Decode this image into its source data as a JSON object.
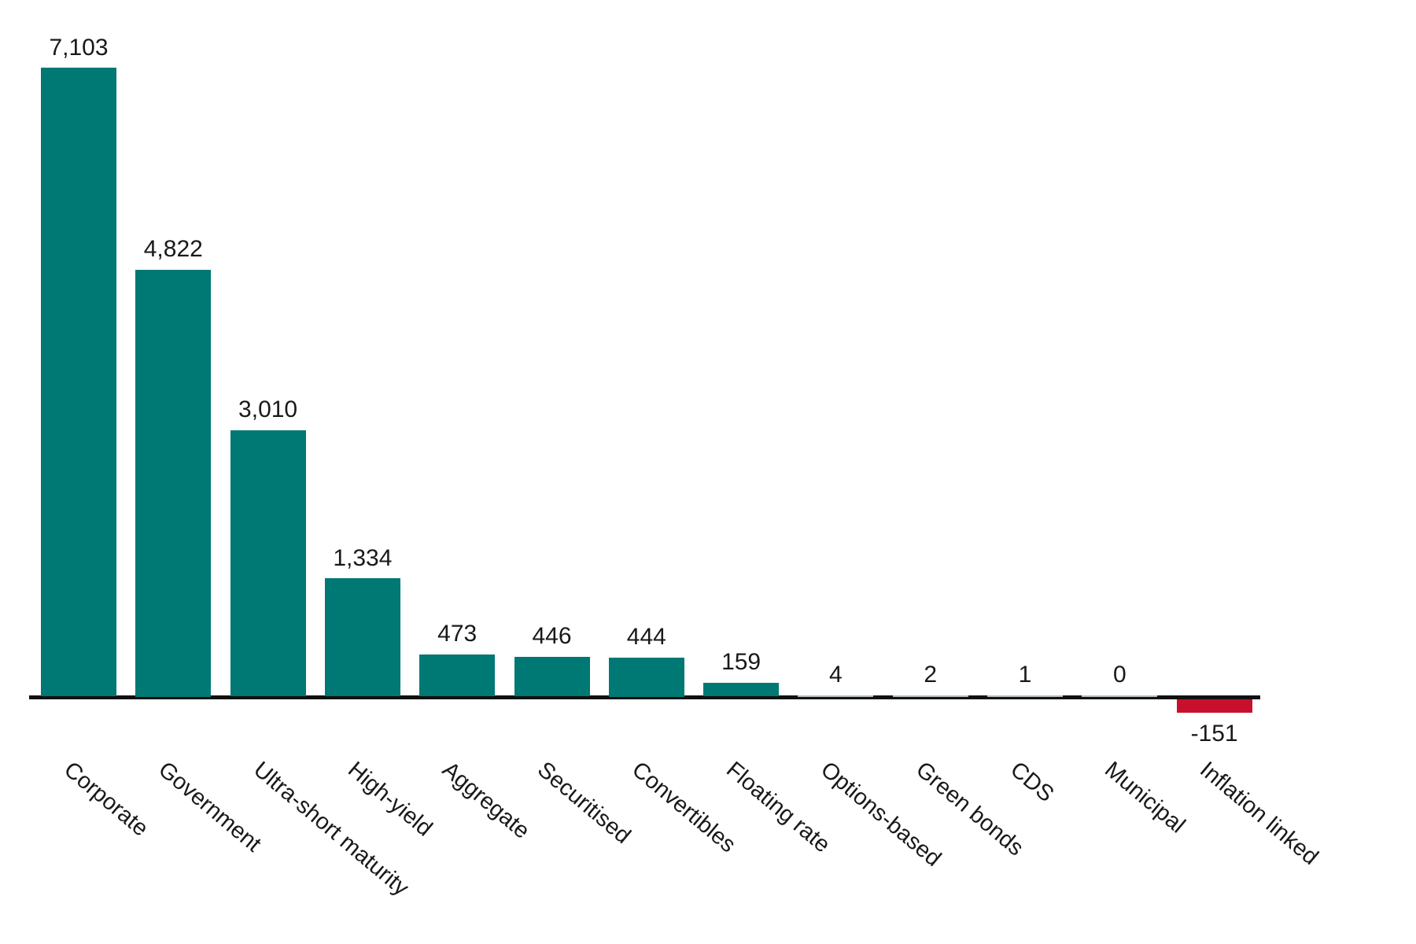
{
  "chart_data": {
    "type": "bar",
    "title": "",
    "xlabel": "",
    "ylabel": "",
    "grid": false,
    "legend": null,
    "ylim": [
      -151,
      7103
    ],
    "categories": [
      "Corporate",
      "Government",
      "Ultra-short maturity",
      "High-yield",
      "Aggregate",
      "Securitised",
      "Convertibles",
      "Floating rate",
      "Options-based",
      "Green bonds",
      "CDS",
      "Municipal",
      "Inflation linked"
    ],
    "values": [
      7103,
      4822,
      3010,
      1334,
      473,
      446,
      444,
      159,
      4,
      2,
      1,
      0,
      -151
    ],
    "value_labels": [
      "7,103",
      "4,822",
      "3,010",
      "1,334",
      "473",
      "446",
      "444",
      "159",
      "4",
      "2",
      "1",
      "0",
      "-151"
    ],
    "layout_hints": {
      "bar_color_positive": "#007873",
      "bar_color_negative": "#C8102E",
      "tiny_bar_color": "#B6BDBD",
      "axis_color": "#111111",
      "text_color": "#191919",
      "tick_label_rotation_css_deg": 40,
      "value_labels_position": "above-bars"
    }
  }
}
